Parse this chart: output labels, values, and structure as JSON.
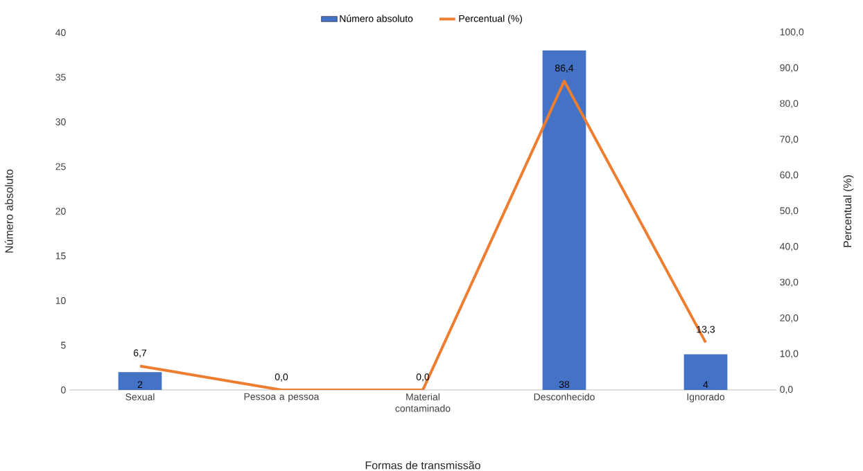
{
  "chart_data": {
    "type": "bar",
    "xlabel": "Formas de transmissão",
    "ylabel": "Número absoluto",
    "y2label": "Percentual (%)",
    "categories": [
      "Sexual",
      "Pessoa a pessoa",
      "Material contaminado",
      "Desconhecido",
      "Ignorado"
    ],
    "series": [
      {
        "name": "Número absoluto",
        "color": "#4472c4",
        "values": [
          2,
          0,
          0,
          38,
          4
        ],
        "value_labels": [
          "2",
          null,
          null,
          "38",
          "4"
        ]
      },
      {
        "name": "Percentual (%)",
        "type": "line",
        "axis": "y2",
        "color": "#ed7d31",
        "values": [
          6.7,
          0.0,
          0.0,
          86.4,
          13.3
        ],
        "value_labels": [
          "6,7",
          "0,0",
          "0,0",
          "86,4",
          "13,3"
        ]
      }
    ],
    "ylim": [
      0,
      40
    ],
    "yticks": [
      0,
      5,
      10,
      15,
      20,
      25,
      30,
      35,
      40
    ],
    "y2lim": [
      0,
      100
    ],
    "y2ticks": [
      {
        "value": 0,
        "label": "0,0"
      },
      {
        "value": 10,
        "label": "10,0"
      },
      {
        "value": 20,
        "label": "20,0"
      },
      {
        "value": 30,
        "label": "30,0"
      },
      {
        "value": 40,
        "label": "40,0"
      },
      {
        "value": 50,
        "label": "50,0"
      },
      {
        "value": 60,
        "label": "60,0"
      },
      {
        "value": 70,
        "label": "70,0"
      },
      {
        "value": 80,
        "label": "80,0"
      },
      {
        "value": 90,
        "label": "90,0"
      },
      {
        "value": 100,
        "label": "100,0"
      }
    ],
    "grid": false,
    "legend": "top"
  }
}
